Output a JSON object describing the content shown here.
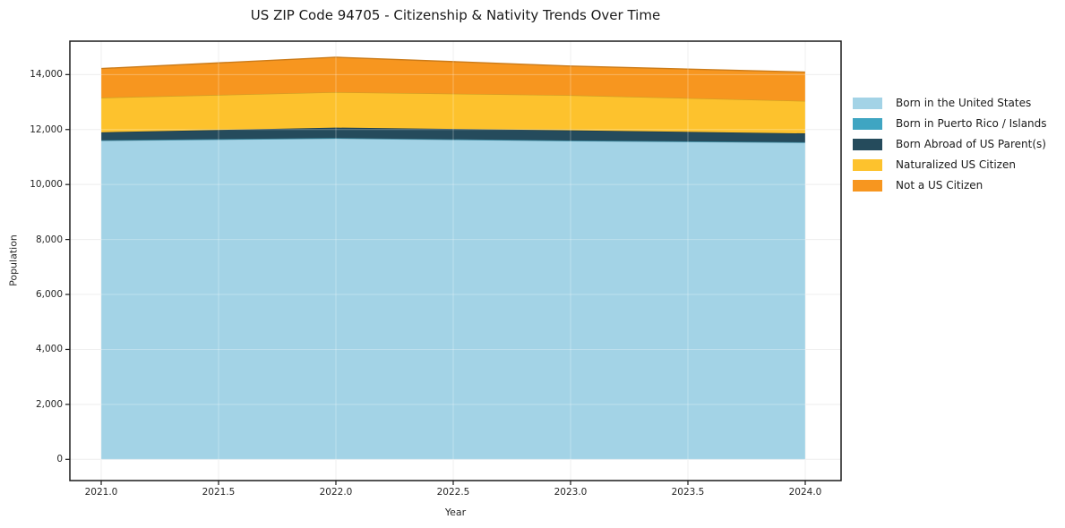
{
  "chart_data": {
    "type": "area",
    "stacked": true,
    "title": "US ZIP Code 94705 - Citizenship & Nativity Trends Over Time",
    "xlabel": "Year",
    "ylabel": "Population",
    "x": [
      2021,
      2022,
      2023,
      2024
    ],
    "x_tick_values": [
      2021.0,
      2021.5,
      2022.0,
      2022.5,
      2023.0,
      2023.5,
      2024.0
    ],
    "x_tick_labels": [
      "2021.0",
      "2021.5",
      "2022.0",
      "2022.5",
      "2023.0",
      "2023.5",
      "2024.0"
    ],
    "y_tick_values": [
      0,
      2000,
      4000,
      6000,
      8000,
      10000,
      12000,
      14000
    ],
    "y_tick_labels": [
      "0",
      "2,000",
      "4,000",
      "6,000",
      "8,000",
      "10,000",
      "12,000",
      "14,000"
    ],
    "ylim": [
      -770,
      15230
    ],
    "xlim": [
      2020.87,
      2024.15
    ],
    "grid": true,
    "legend_position": "outside-right",
    "series": [
      {
        "name": "Born in the United States",
        "color": "#a3d3e6",
        "values": [
          11600,
          11680,
          11590,
          11530
        ]
      },
      {
        "name": "Born in Puerto Rico / Islands",
        "color": "#3fa5c2",
        "values": [
          10,
          10,
          10,
          10
        ]
      },
      {
        "name": "Born Abroad of US Parent(s)",
        "color": "#254b5c",
        "values": [
          290,
          380,
          370,
          320
        ]
      },
      {
        "name": "Naturalized US Citizen",
        "color": "#fdc22d",
        "values": [
          1260,
          1290,
          1280,
          1180
        ]
      },
      {
        "name": "Not a US Citizen",
        "color": "#f7961f",
        "values": [
          1060,
          1270,
          1060,
          1050
        ]
      }
    ],
    "style": {
      "background": "#ffffff",
      "spine": "#1a1a1a",
      "grid": "#e9e9e9",
      "tick_text": "#262626",
      "title_text": "#1a1a1a"
    }
  }
}
